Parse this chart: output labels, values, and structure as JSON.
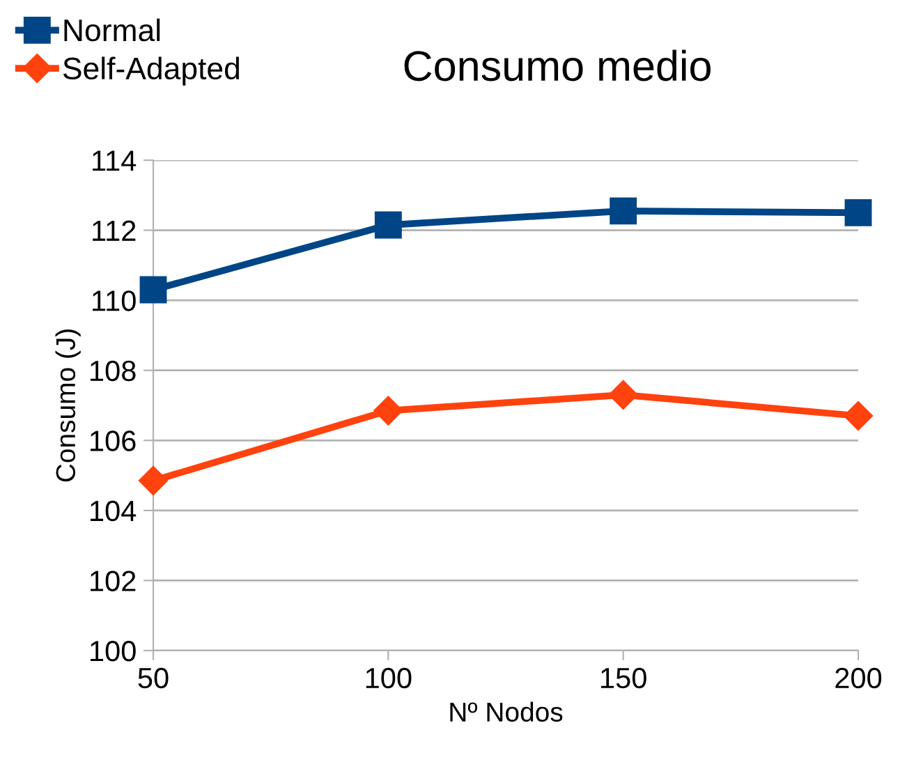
{
  "chart_data": {
    "type": "line",
    "title": "Consumo medio",
    "xlabel": "Nº Nodos",
    "ylabel": "Consumo (J)",
    "x": [
      50,
      100,
      150,
      200
    ],
    "series": [
      {
        "name": "Normal",
        "color": "#004586",
        "values": [
          110.3,
          112.15,
          112.55,
          112.5
        ],
        "marker": "square"
      },
      {
        "name": "Self-Adapted",
        "color": "#ff420e",
        "values": [
          104.85,
          106.85,
          107.3,
          106.7
        ],
        "marker": "diamond"
      }
    ],
    "xlim": [
      50,
      200
    ],
    "xticks": [
      50,
      100,
      150,
      200
    ],
    "ylim": [
      100,
      114
    ],
    "yticks": [
      100,
      102,
      104,
      106,
      108,
      110,
      112,
      114
    ],
    "grid": "y",
    "legend": "top left",
    "line_style": "solid"
  }
}
